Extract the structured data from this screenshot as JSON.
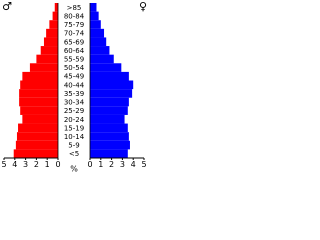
{
  "chart_data": {
    "type": "pyramid",
    "categories": [
      ">85",
      "80-84",
      "75-79",
      "70-74",
      "65-69",
      "60-64",
      "55-59",
      "50-54",
      "45-49",
      "40-44",
      "35-39",
      "30-34",
      "25-29",
      "20-24",
      "15-19",
      "10-14",
      "5-9",
      "<5"
    ],
    "series": [
      {
        "name": "♂",
        "color": "#ff0000",
        "values": [
          0.3,
          0.5,
          0.8,
          1.1,
          1.3,
          1.6,
          2.0,
          2.6,
          3.3,
          3.5,
          3.6,
          3.6,
          3.5,
          3.3,
          3.7,
          3.8,
          3.9,
          4.1
        ]
      },
      {
        "name": "♀",
        "color": "#0000ff",
        "values": [
          0.6,
          0.8,
          1.0,
          1.3,
          1.5,
          1.8,
          2.2,
          2.9,
          3.6,
          4.0,
          3.9,
          3.6,
          3.5,
          3.2,
          3.5,
          3.6,
          3.7,
          3.5
        ]
      }
    ],
    "xlim": [
      0,
      5
    ],
    "xticks": [
      0,
      1,
      2,
      3,
      4,
      5
    ],
    "xlabel": "%"
  }
}
